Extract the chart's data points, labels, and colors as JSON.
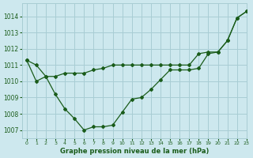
{
  "title": "Graphe pression niveau de la mer (hPa)",
  "background_color": "#cde8ee",
  "grid_color": "#a8cdd4",
  "line_color": "#1a5c1a",
  "xlim": [
    -0.5,
    23
  ],
  "ylim": [
    1006.5,
    1014.8
  ],
  "yticks": [
    1007,
    1008,
    1009,
    1010,
    1011,
    1012,
    1013,
    1014
  ],
  "xticks": [
    0,
    1,
    2,
    3,
    4,
    5,
    6,
    7,
    8,
    9,
    10,
    11,
    12,
    13,
    14,
    15,
    16,
    17,
    18,
    19,
    20,
    21,
    22,
    23
  ],
  "series1_x": [
    0,
    1,
    2,
    3,
    4,
    5,
    6,
    7,
    8,
    9,
    10,
    11,
    12,
    13,
    14,
    15,
    16,
    17,
    18,
    19,
    20,
    21,
    22,
    23
  ],
  "series1_y": [
    1011.3,
    1011.0,
    1010.3,
    1009.2,
    1008.3,
    1007.7,
    1007.0,
    1007.2,
    1007.2,
    1007.3,
    1008.1,
    1008.9,
    1009.0,
    1009.5,
    1010.1,
    1010.7,
    1010.7,
    1010.7,
    1010.8,
    1011.7,
    1011.8,
    1012.5,
    1013.9,
    1014.3
  ],
  "series2_x": [
    0,
    1,
    2,
    3,
    4,
    5,
    6,
    7,
    8,
    9,
    10,
    11,
    12,
    13,
    14,
    15,
    16,
    17,
    18,
    19,
    20,
    21,
    22,
    23
  ],
  "series2_y": [
    1011.3,
    1010.0,
    1010.3,
    1010.3,
    1010.5,
    1010.5,
    1010.5,
    1010.7,
    1010.8,
    1011.0,
    1011.0,
    1011.0,
    1011.0,
    1011.0,
    1011.0,
    1011.0,
    1011.0,
    1011.0,
    1011.7,
    1011.8,
    1011.8,
    1012.5,
    1013.9,
    1014.3
  ]
}
